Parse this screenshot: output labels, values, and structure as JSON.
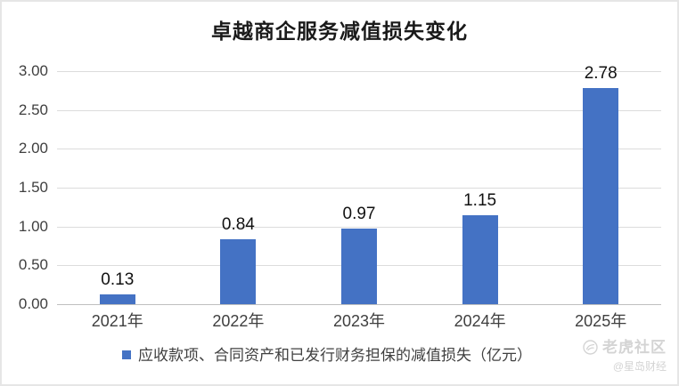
{
  "chart_data": {
    "type": "bar",
    "title": "卓越商企服务减值损失变化",
    "categories": [
      "2021年",
      "2022年",
      "2023年",
      "2024年",
      "2025年"
    ],
    "values": [
      0.13,
      0.84,
      0.97,
      1.15,
      2.78
    ],
    "value_labels": [
      "0.13",
      "0.84",
      "0.97",
      "1.15",
      "2.78"
    ],
    "y_ticks": [
      "0.00",
      "0.50",
      "1.00",
      "1.50",
      "2.00",
      "2.50",
      "3.00"
    ],
    "ylim": [
      0,
      3
    ],
    "grid": true,
    "legend": "应收款项、合同资产和已发行财务担保的减值损失（亿元）",
    "legend_position": "bottom",
    "bar_color": "#4472c4",
    "gridline_color": "#dcdcdc"
  },
  "watermark": {
    "community": "老虎社区",
    "source": "@星岛财经",
    "icon": "tiger-logo-icon"
  }
}
